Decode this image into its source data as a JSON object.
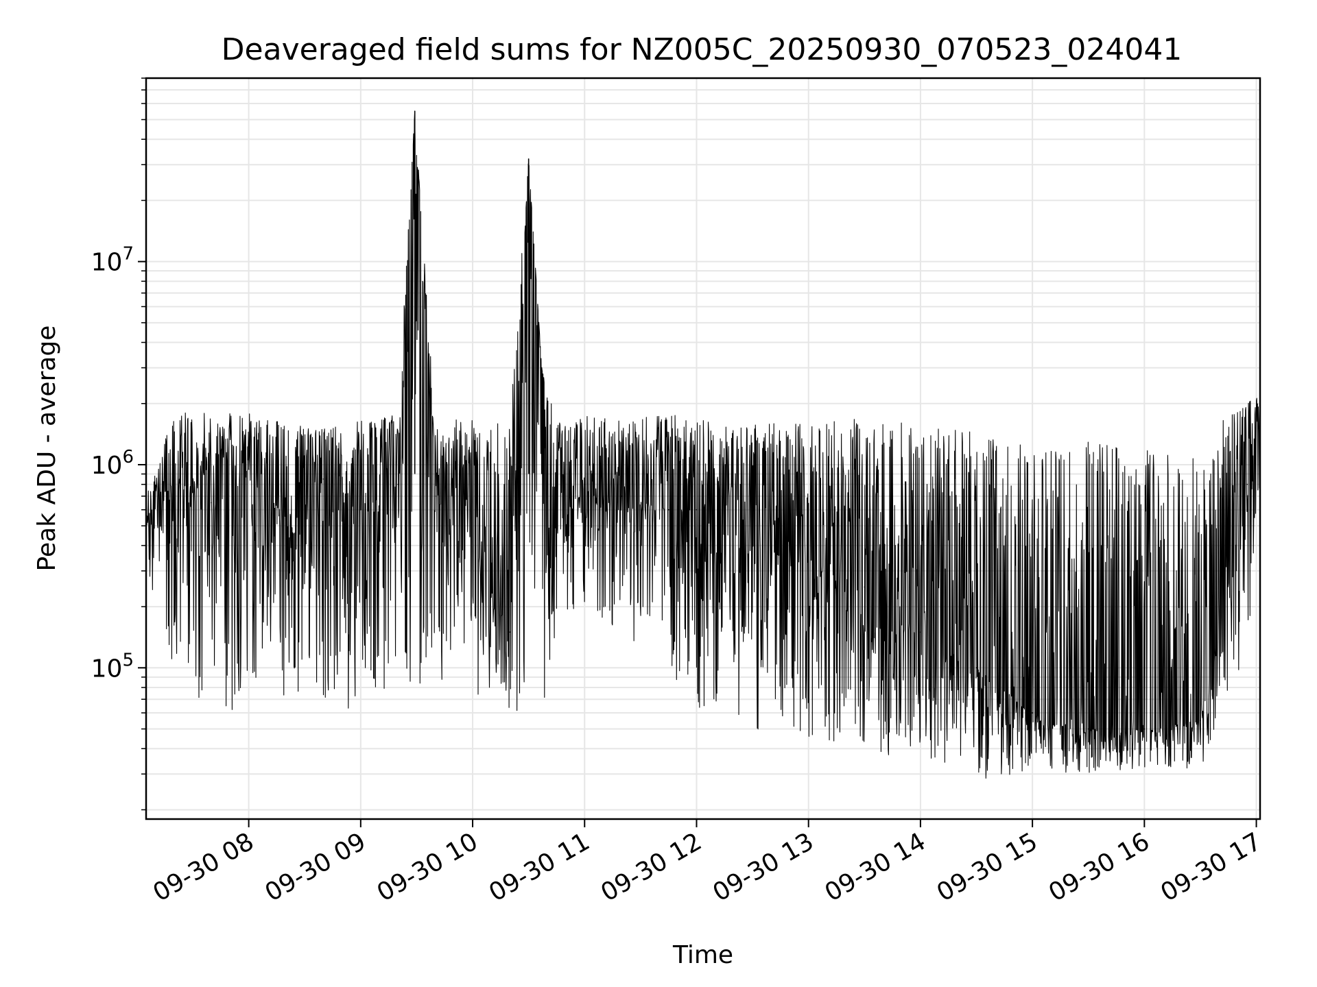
{
  "chart_data": {
    "type": "line",
    "title": "Deaveraged field sums for NZ005C_20250930_070523_024041",
    "xlabel": "Time",
    "ylabel": "Peak ADU - average",
    "yscale": "log",
    "xlim": [
      "2025-09-30 07:05",
      "2025-09-30 17:02"
    ],
    "ylim": [
      18000,
      80000000
    ],
    "grid": true,
    "line_color": "#000000",
    "x_ticks": [
      {
        "label": "09-30 08",
        "value": "2025-09-30 08:00"
      },
      {
        "label": "09-30 09",
        "value": "2025-09-30 09:00"
      },
      {
        "label": "09-30 10",
        "value": "2025-09-30 10:00"
      },
      {
        "label": "09-30 11",
        "value": "2025-09-30 11:00"
      },
      {
        "label": "09-30 12",
        "value": "2025-09-30 12:00"
      },
      {
        "label": "09-30 13",
        "value": "2025-09-30 13:00"
      },
      {
        "label": "09-30 14",
        "value": "2025-09-30 14:00"
      },
      {
        "label": "09-30 15",
        "value": "2025-09-30 15:00"
      },
      {
        "label": "09-30 16",
        "value": "2025-09-30 16:00"
      },
      {
        "label": "09-30 17",
        "value": "2025-09-30 17:00"
      }
    ],
    "y_ticks": [
      {
        "base": "10",
        "exp": "5",
        "value": 100000
      },
      {
        "base": "10",
        "exp": "6",
        "value": 1000000
      },
      {
        "base": "10",
        "exp": "7",
        "value": 10000000
      }
    ],
    "series": [
      {
        "x": [
          "2025-09-30 07:05",
          "2025-09-30 07:20",
          "2025-09-30 07:40",
          "2025-09-30 08:00",
          "2025-09-30 08:20",
          "2025-09-30 08:40",
          "2025-09-30 09:00",
          "2025-09-30 09:20",
          "2025-09-30 09:29",
          "2025-09-30 09:40",
          "2025-09-30 09:55",
          "2025-09-30 10:05",
          "2025-09-30 10:20",
          "2025-09-30 10:30",
          "2025-09-30 10:37",
          "2025-09-30 10:45",
          "2025-09-30 11:00",
          "2025-09-30 11:20",
          "2025-09-30 11:45",
          "2025-09-30 12:00",
          "2025-09-30 12:30",
          "2025-09-30 13:00",
          "2025-09-30 13:30",
          "2025-09-30 14:00",
          "2025-09-30 14:30",
          "2025-09-30 15:00",
          "2025-09-30 15:30",
          "2025-09-30 16:00",
          "2025-09-30 16:30",
          "2025-09-30 16:55",
          "2025-09-30 17:02"
        ],
        "y": [
          500000,
          900000,
          650000,
          950000,
          550000,
          850000,
          600000,
          800000,
          55000000,
          700000,
          800000,
          300000,
          150000,
          32000000,
          3000000,
          500000,
          800000,
          700000,
          600000,
          600000,
          400000,
          350000,
          250000,
          150000,
          100000,
          60000,
          50000,
          50000,
          55000,
          800000,
          1000000
        ],
        "upper": [
          700000,
          1800000,
          1800000,
          1800000,
          1600000,
          1500000,
          1700000,
          1800000,
          55000000,
          1600000,
          1700000,
          1600000,
          1700000,
          32000000,
          3000000,
          1600000,
          1800000,
          1700000,
          1800000,
          1700000,
          1600000,
          1600000,
          1700000,
          1600000,
          1500000,
          1200000,
          1300000,
          1200000,
          1400000,
          2000000,
          2300000
        ],
        "lower": [
          300000,
          100000,
          60000,
          60000,
          70000,
          70000,
          60000,
          70000,
          80000,
          80000,
          100000,
          60000,
          60000,
          60000,
          60000,
          150000,
          200000,
          150000,
          90000,
          55000,
          50000,
          45000,
          40000,
          33000,
          28000,
          30000,
          30000,
          32000,
          32000,
          100000,
          600000
        ]
      }
    ]
  }
}
